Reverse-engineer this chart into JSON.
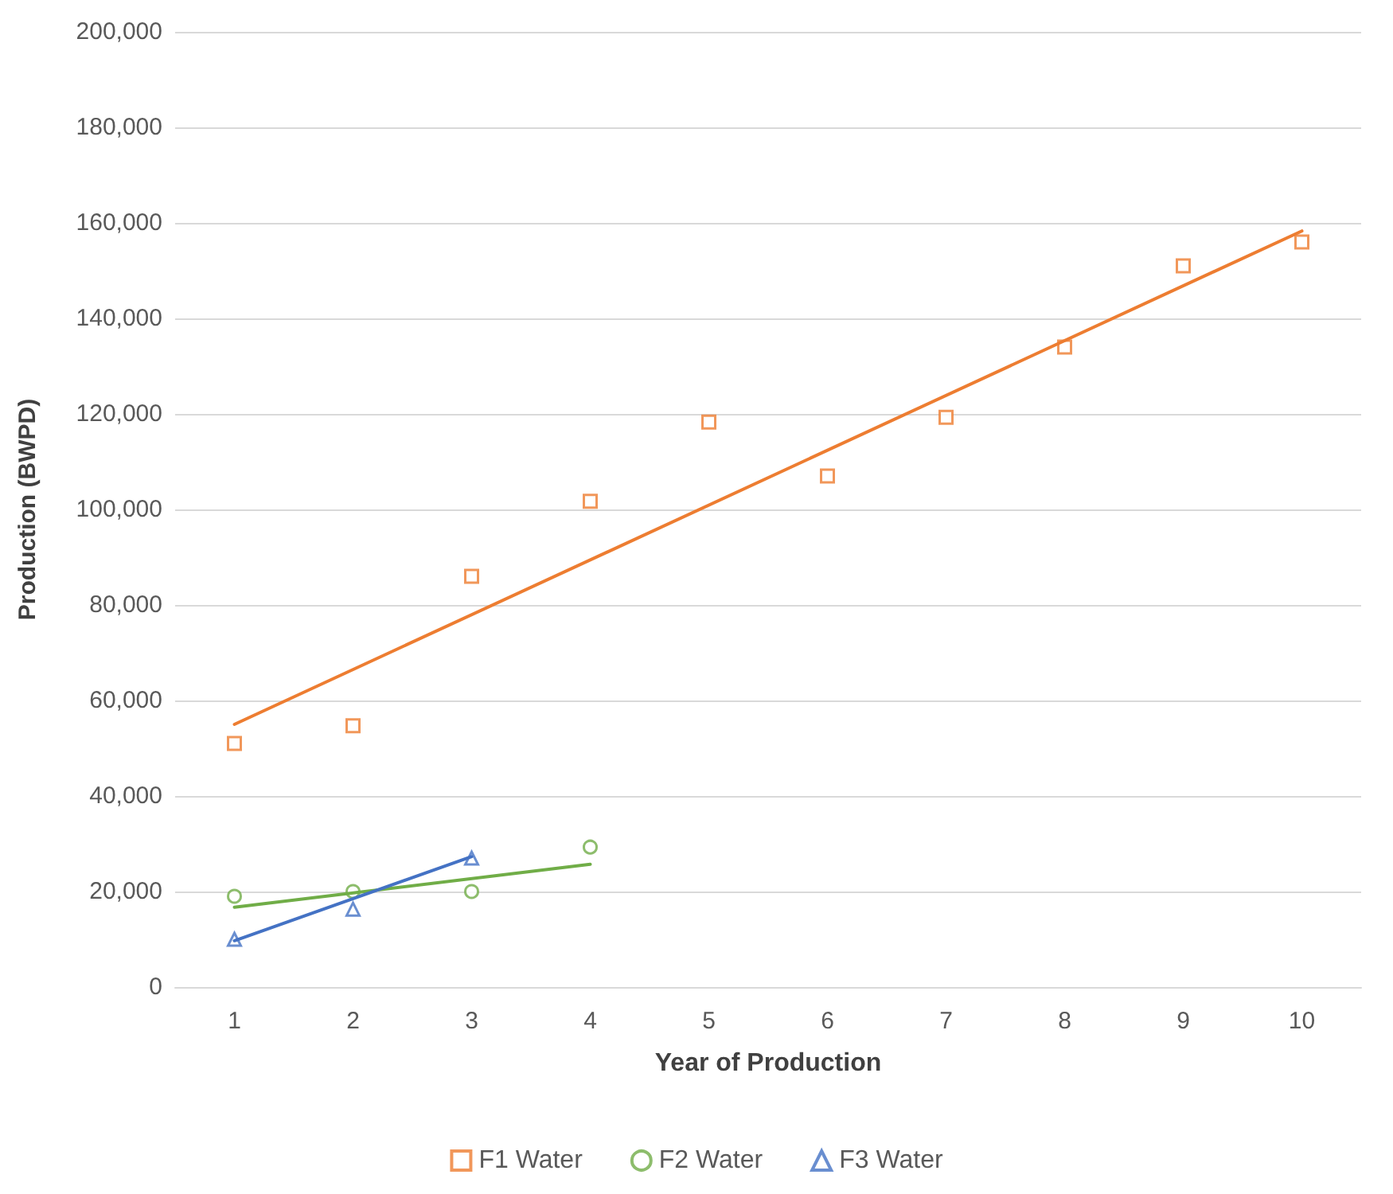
{
  "chart_data": {
    "type": "scatter",
    "xlabel": "Year of Production",
    "ylabel": "Production (BWPD)",
    "xlim": [
      0.5,
      10.5
    ],
    "xticks": [
      1,
      2,
      3,
      4,
      5,
      6,
      7,
      8,
      9,
      10
    ],
    "ylim": [
      0,
      200000
    ],
    "yticks": [
      {
        "value": 0,
        "label": "0"
      },
      {
        "value": 20000,
        "label": "20,000"
      },
      {
        "value": 40000,
        "label": "40,000"
      },
      {
        "value": 60000,
        "label": "60,000"
      },
      {
        "value": 80000,
        "label": "80,000"
      },
      {
        "value": 100000,
        "label": "100,000"
      },
      {
        "value": 120000,
        "label": "120,000"
      },
      {
        "value": 140000,
        "label": "140,000"
      },
      {
        "value": 160000,
        "label": "160,000"
      },
      {
        "value": 180000,
        "label": "180,000"
      },
      {
        "value": 200000,
        "label": "200,000"
      }
    ],
    "grid": "y",
    "legend": "bottom",
    "series": [
      {
        "name": "F1 Water",
        "color": "#ed7d31",
        "marker": "square",
        "x": [
          1,
          2,
          3,
          4,
          5,
          6,
          7,
          8,
          9,
          10
        ],
        "values": [
          51000,
          54700,
          86000,
          101700,
          118300,
          107000,
          119300,
          134000,
          151000,
          156000
        ]
      },
      {
        "name": "F2 Water",
        "color": "#70ad47",
        "marker": "circle",
        "x": [
          1,
          2,
          3,
          4
        ],
        "values": [
          19000,
          20000,
          20000,
          29300
        ]
      },
      {
        "name": "F3 Water",
        "color": "#4472c4",
        "marker": "triangle",
        "x": [
          1,
          2,
          3
        ],
        "values": [
          10000,
          16300,
          27000
        ]
      },
      {
        "type": "line",
        "color": "#ed7d31",
        "marker": "none",
        "x": [
          1,
          10
        ],
        "values": [
          55000,
          158300
        ]
      },
      {
        "type": "line",
        "color": "#70ad47",
        "marker": "none",
        "x": [
          1,
          4
        ],
        "values": [
          16700,
          25700
        ]
      },
      {
        "type": "line",
        "color": "#4472c4",
        "marker": "none",
        "x": [
          1,
          3
        ],
        "values": [
          9700,
          27300
        ]
      }
    ]
  }
}
